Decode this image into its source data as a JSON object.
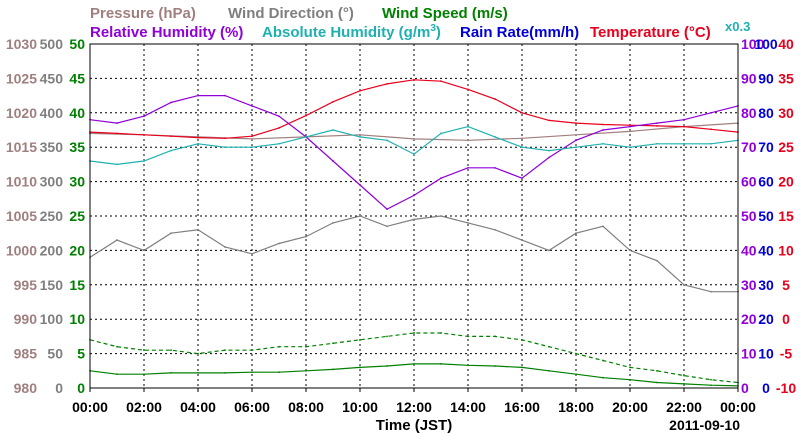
{
  "header": {
    "pressure": "Pressure (hPa)",
    "wind_direction": "Wind Direction (°)",
    "wind_speed": "Wind Speed (m/s)",
    "relative_humidity": "Relative Humidity (%)",
    "absolute_humidity_prefix": "Absolute Humidity (g/m",
    "absolute_humidity_sup": "3",
    "absolute_humidity_suffix": ")",
    "rain_rate": "Rain Rate(mm/h)",
    "temperature": "Temperature (°C)",
    "rain_multiplier": "x0.3"
  },
  "colors": {
    "pressure": "#a07f7f",
    "wind_direction": "#7f7f7f",
    "wind_speed": "#008000",
    "relative_humidity": "#9000d8",
    "absolute_humidity": "#20b0b0",
    "rain_rate": "#0000d8",
    "temperature": "#e8001c",
    "grid": "#000000"
  },
  "chart_data": {
    "type": "line",
    "date": "2011-09-10",
    "xlabel": "Time (JST)",
    "xlim": [
      0,
      24
    ],
    "x_ticks": [
      "00:00",
      "02:00",
      "04:00",
      "06:00",
      "08:00",
      "10:00",
      "12:00",
      "14:00",
      "16:00",
      "18:00",
      "20:00",
      "22:00",
      "00:00"
    ],
    "grid": true,
    "axes": {
      "pressure": {
        "ticks": [
          "1030",
          "1025",
          "1020",
          "1015",
          "1010",
          "1005",
          "1000",
          "995",
          "990",
          "985",
          "980"
        ],
        "lim": [
          980,
          1030
        ]
      },
      "wind_direction": {
        "ticks": [
          "500",
          "450",
          "400",
          "350",
          "300",
          "250",
          "200",
          "150",
          "100",
          "50",
          "0"
        ],
        "lim": [
          0,
          500
        ]
      },
      "wind_speed": {
        "ticks": [
          "50",
          "45",
          "40",
          "35",
          "30",
          "25",
          "20",
          "15",
          "10",
          "5",
          "0"
        ],
        "lim": [
          0,
          50
        ]
      },
      "relative_humidity": {
        "ticks": [
          "100",
          "90",
          "80",
          "70",
          "60",
          "50",
          "40",
          "30",
          "20",
          "10",
          "0"
        ],
        "lim": [
          0,
          100
        ]
      },
      "rain_rate": {
        "ticks": [
          "100",
          "90",
          "80",
          "70",
          "60",
          "50",
          "40",
          "30",
          "20",
          "10",
          "0"
        ],
        "lim": [
          0,
          100
        ]
      },
      "temperature": {
        "ticks": [
          "40",
          "35",
          "30",
          "25",
          "20",
          "15",
          "10",
          "5",
          "0",
          "-5",
          "-10"
        ],
        "lim": [
          -10,
          40
        ]
      }
    },
    "series": [
      {
        "key": "pressure",
        "axis": "pressure",
        "x": [
          0,
          2,
          4,
          6,
          8,
          10,
          12,
          14,
          16,
          18,
          20,
          22,
          24
        ],
        "y": [
          1017,
          1016.8,
          1016.5,
          1016.2,
          1016.5,
          1016.8,
          1016.2,
          1016,
          1016.3,
          1016.8,
          1017.3,
          1018,
          1018.5
        ]
      },
      {
        "key": "temperature",
        "axis": "temperature",
        "x": [
          0,
          1,
          2,
          3,
          4,
          5,
          6,
          7,
          8,
          9,
          10,
          11,
          12,
          13,
          14,
          15,
          16,
          17,
          18,
          19,
          20,
          21,
          22,
          23,
          24
        ],
        "y": [
          27.2,
          27,
          26.8,
          26.6,
          26.4,
          26.3,
          26.6,
          27.8,
          29.6,
          31.6,
          33.2,
          34.2,
          34.8,
          34.6,
          33.4,
          32,
          30,
          28.9,
          28.5,
          28.3,
          28.2,
          28.1,
          28,
          27.6,
          27.2
        ]
      },
      {
        "key": "relative_humidity",
        "axis": "relative_humidity",
        "x": [
          0,
          1,
          2,
          3,
          4,
          5,
          6,
          7,
          8,
          9,
          10,
          11,
          12,
          13,
          14,
          15,
          16,
          17,
          18,
          19,
          20,
          21,
          22,
          23,
          24
        ],
        "y": [
          78,
          77,
          79,
          83,
          85,
          85,
          82,
          79,
          73,
          66,
          59,
          52,
          56,
          61,
          64,
          64,
          61,
          67,
          72,
          75,
          76,
          77,
          78,
          80,
          82
        ]
      },
      {
        "key": "absolute_humidity",
        "axis": "relative_humidity",
        "x": [
          0,
          1,
          2,
          3,
          4,
          5,
          6,
          7,
          8,
          9,
          10,
          11,
          12,
          13,
          14,
          15,
          16,
          17,
          18,
          19,
          20,
          21,
          22,
          23,
          24
        ],
        "y": [
          66,
          65,
          66,
          69,
          71,
          70,
          70,
          71,
          73,
          75,
          73,
          72,
          68,
          74,
          76,
          73,
          70,
          69,
          70,
          71,
          70,
          71,
          71,
          71,
          72
        ]
      },
      {
        "key": "wind_direction",
        "axis": "wind_direction",
        "x": [
          0,
          1,
          2,
          3,
          4,
          5,
          6,
          7,
          8,
          9,
          10,
          11,
          12,
          13,
          14,
          15,
          16,
          17,
          18,
          19,
          20,
          21,
          22,
          23,
          24
        ],
        "y": [
          190,
          215,
          200,
          225,
          230,
          205,
          195,
          210,
          220,
          240,
          250,
          235,
          245,
          250,
          240,
          230,
          215,
          200,
          225,
          235,
          200,
          185,
          150,
          140,
          140
        ]
      },
      {
        "key": "wind_speed_avg",
        "axis": "wind_speed",
        "x": [
          0,
          1,
          2,
          3,
          4,
          5,
          6,
          7,
          8,
          9,
          10,
          11,
          12,
          13,
          14,
          15,
          16,
          17,
          18,
          19,
          20,
          21,
          22,
          23,
          24
        ],
        "y": [
          2.5,
          2,
          2,
          2.2,
          2.2,
          2.2,
          2.3,
          2.3,
          2.5,
          2.7,
          3,
          3.2,
          3.5,
          3.5,
          3.3,
          3.2,
          3,
          2.5,
          2,
          1.5,
          1.2,
          0.8,
          0.6,
          0.4,
          0.3
        ]
      },
      {
        "key": "wind_speed_max",
        "axis": "wind_speed",
        "x": [
          0,
          1,
          2,
          3,
          4,
          5,
          6,
          7,
          8,
          9,
          10,
          11,
          12,
          13,
          14,
          15,
          16,
          17,
          18,
          19,
          20,
          21,
          22,
          23,
          24
        ],
        "y": [
          7,
          6,
          5.5,
          5.5,
          5,
          5.5,
          5.5,
          6,
          6,
          6.5,
          7,
          7.5,
          8,
          8,
          7.5,
          7.5,
          7,
          6,
          5,
          4,
          3,
          2.5,
          1.8,
          1.2,
          0.8
        ]
      }
    ]
  }
}
